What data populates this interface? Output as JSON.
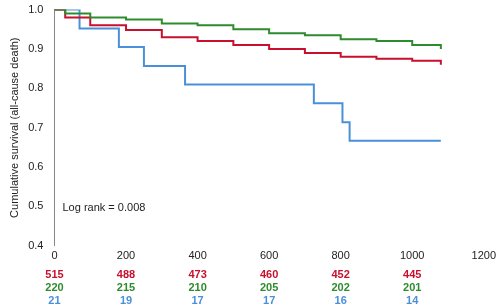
{
  "chart_data": {
    "type": "line",
    "y_label": "Cumulative survival (all-cause death)",
    "annotation": "Log rank = 0.008",
    "line_style": "step",
    "grid": false,
    "xlim": [
      0,
      1200
    ],
    "xticks": [
      0,
      200,
      400,
      600,
      800,
      1000,
      1200
    ],
    "ylim": [
      0.4,
      1
    ],
    "yticks": [
      0.4,
      0.5,
      0.6,
      0.7,
      0.8,
      0.9,
      {
        "value": 1,
        "label": "1.0"
      }
    ],
    "series": [
      {
        "color": "#2e8b2e",
        "x": [
          0,
          30,
          100,
          200,
          300,
          400,
          500,
          600,
          700,
          800,
          900,
          1000,
          1080
        ],
        "values": [
          1,
          0.99,
          0.98,
          0.975,
          0.965,
          0.96,
          0.95,
          0.94,
          0.935,
          0.925,
          0.92,
          0.91,
          0.9
        ]
      },
      {
        "color": "#c8102e",
        "x": [
          0,
          30,
          100,
          200,
          300,
          400,
          500,
          600,
          700,
          800,
          900,
          1000,
          1080
        ],
        "values": [
          1,
          0.98,
          0.96,
          0.948,
          0.93,
          0.92,
          0.91,
          0.9,
          0.89,
          0.88,
          0.875,
          0.87,
          0.86
        ]
      },
      {
        "color": "#4a90d9",
        "x": [
          0,
          70,
          180,
          250,
          365,
          725,
          805,
          825,
          1080
        ],
        "values": [
          1,
          0.952,
          0.905,
          0.857,
          0.81,
          0.762,
          0.714,
          0.667,
          0.667
        ]
      }
    ],
    "risk_table": {
      "x": [
        0,
        200,
        400,
        600,
        800,
        1000
      ],
      "rows": [
        {
          "color": "#c8102e",
          "values": [
            515,
            488,
            473,
            460,
            452,
            445
          ]
        },
        {
          "color": "#2e8b2e",
          "values": [
            220,
            215,
            210,
            205,
            202,
            201
          ]
        },
        {
          "color": "#4a90d9",
          "values": [
            21,
            19,
            17,
            17,
            16,
            14
          ]
        }
      ]
    }
  }
}
